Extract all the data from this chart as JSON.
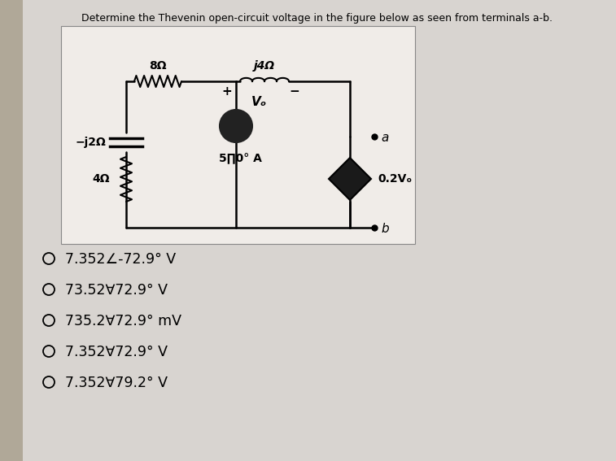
{
  "title": "Determine the Thevenin open-circuit voltage in the figure below as seen from terminals a-b.",
  "page_bg": "#c8c4c0",
  "content_bg": "#d8d4d0",
  "circuit_bg": "#f0ece8",
  "left_bar_color": "#b0a898",
  "answer_choices": [
    "7.352∠-72.9° V",
    "73.52∀72.9° V",
    "735.2∀72.9° mV",
    "7.352∀72.9° V",
    "7.352∀79.2° V"
  ],
  "resistor_top_label": "8Ω",
  "inductor_label": "j4Ω",
  "voltage_label": "Vₒ",
  "capacitor_label": "−j2Ω",
  "resistor_left_label": "4Ω",
  "current_source_label": "5∏0° A",
  "dependent_label": "0.2Vₒ",
  "terminal_a": "a",
  "terminal_b": "b",
  "plus_sign": "+",
  "minus_sign": "−"
}
